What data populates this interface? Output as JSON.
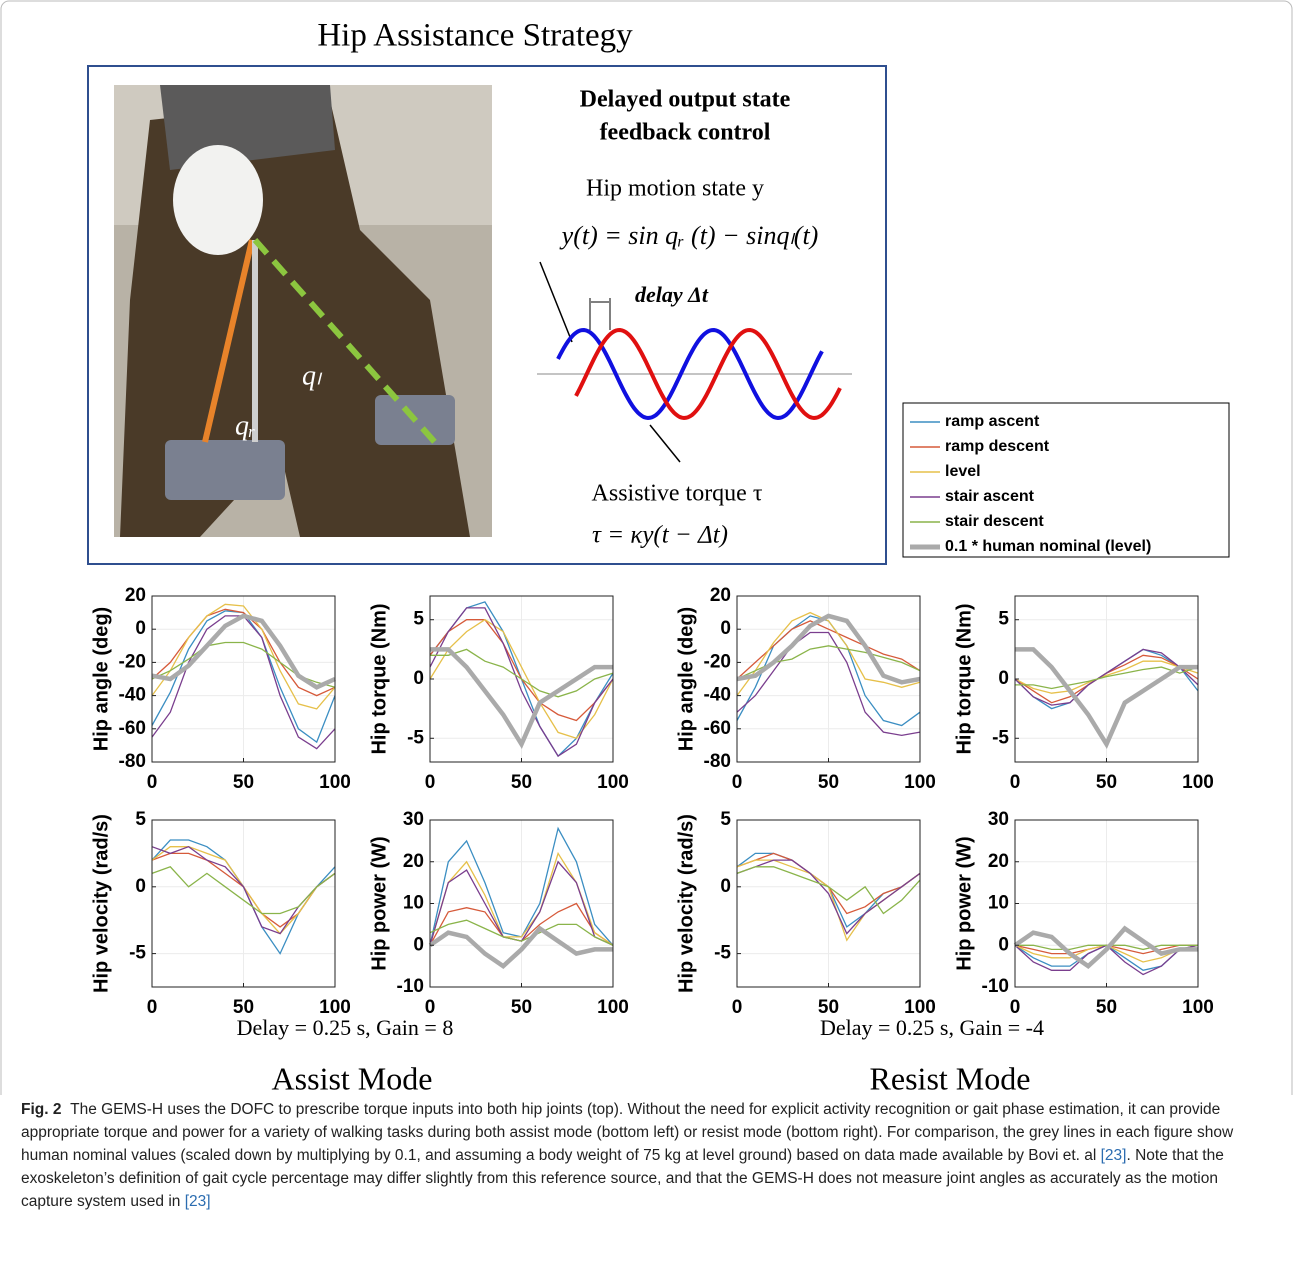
{
  "title": "Hip Assistance Strategy",
  "diagram": {
    "heading": [
      "Delayed output state",
      "feedback control"
    ],
    "state_label": "Hip motion state y",
    "state_eq": "y(t) = sin qᵣ (t) − sinqₗ(t)",
    "delay_label": "delay Δt",
    "torque_label": "Assistive torque τ",
    "torque_eq": "τ = κy(t − Δt)",
    "q_r": "qᵣ",
    "q_l": "qₗ"
  },
  "legend": [
    {
      "name": "ramp ascent",
      "color": "#3b8ec2"
    },
    {
      "name": "ramp descent",
      "color": "#d65a3a"
    },
    {
      "name": "level",
      "color": "#e6c04a"
    },
    {
      "name": "stair ascent",
      "color": "#7a3e8e"
    },
    {
      "name": "stair descent",
      "color": "#8ab44a"
    },
    {
      "name": "0.1 * human nominal (level)",
      "color": "#aaaaaa"
    }
  ],
  "chart_data": [
    {
      "type": "line",
      "y_label": "Hip angle (deg)",
      "x": [
        0,
        10,
        20,
        30,
        40,
        50,
        60,
        70,
        80,
        90,
        100
      ],
      "xlim": [
        0,
        100
      ],
      "xticks": [
        0,
        50,
        100
      ],
      "ylim": [
        -80,
        20
      ],
      "yticks": [
        -80,
        -60,
        -40,
        -20,
        0,
        20
      ],
      "grid": true,
      "series": [
        {
          "color": "#3b8ec2",
          "values": [
            -58,
            -38,
            -12,
            5,
            11,
            10,
            -5,
            -35,
            -60,
            -68,
            -40
          ]
        },
        {
          "color": "#d65a3a",
          "values": [
            -30,
            -20,
            -5,
            8,
            12,
            10,
            0,
            -20,
            -35,
            -40,
            -35
          ]
        },
        {
          "color": "#e6c04a",
          "values": [
            -40,
            -25,
            -5,
            8,
            15,
            14,
            0,
            -25,
            -45,
            -48,
            -35
          ]
        },
        {
          "color": "#7a3e8e",
          "values": [
            -65,
            -50,
            -20,
            0,
            8,
            8,
            -5,
            -40,
            -65,
            -72,
            -60
          ]
        },
        {
          "color": "#8ab44a",
          "values": [
            -30,
            -25,
            -18,
            -10,
            -8,
            -8,
            -12,
            -20,
            -28,
            -32,
            -35
          ]
        },
        {
          "color": "#aaaaaa",
          "values": [
            -28,
            -30,
            -22,
            -10,
            2,
            8,
            5,
            -10,
            -28,
            -35,
            -30
          ]
        }
      ]
    },
    {
      "type": "line",
      "y_label": "Hip torque (Nm)",
      "x": [
        0,
        10,
        20,
        30,
        40,
        50,
        60,
        70,
        80,
        90,
        100
      ],
      "xlim": [
        0,
        100
      ],
      "xticks": [
        0,
        50,
        100
      ],
      "ylim": [
        -7,
        7
      ],
      "yticks": [
        -5,
        0,
        5
      ],
      "grid": true,
      "series": [
        {
          "color": "#3b8ec2",
          "values": [
            2,
            4,
            6,
            6.5,
            4,
            0,
            -4,
            -6.5,
            -5,
            -2,
            0.5
          ]
        },
        {
          "color": "#d65a3a",
          "values": [
            2,
            4,
            5,
            5,
            3,
            0,
            -2,
            -3,
            -3.5,
            -2,
            0
          ]
        },
        {
          "color": "#e6c04a",
          "values": [
            0,
            2.5,
            4,
            5,
            4,
            1,
            -2,
            -4.5,
            -5,
            -3,
            0
          ]
        },
        {
          "color": "#7a3e8e",
          "values": [
            1,
            4,
            6,
            6,
            3,
            -1,
            -4,
            -6.5,
            -5.5,
            -2,
            0
          ]
        },
        {
          "color": "#8ab44a",
          "values": [
            2,
            2,
            2.5,
            1.5,
            1,
            0,
            -1,
            -1.5,
            -1,
            0,
            0.5
          ]
        },
        {
          "color": "#aaaaaa",
          "values": [
            2.5,
            2.5,
            1,
            -1,
            -3,
            -5.5,
            -2,
            -1,
            0,
            1,
            1
          ]
        }
      ]
    },
    {
      "type": "line",
      "y_label": "Hip angle (deg)",
      "x": [
        0,
        10,
        20,
        30,
        40,
        50,
        60,
        70,
        80,
        90,
        100
      ],
      "xlim": [
        0,
        100
      ],
      "xticks": [
        0,
        50,
        100
      ],
      "ylim": [
        -80,
        20
      ],
      "yticks": [
        -80,
        -60,
        -40,
        -20,
        0,
        20
      ],
      "grid": true,
      "series": [
        {
          "color": "#3b8ec2",
          "values": [
            -55,
            -35,
            -10,
            0,
            8,
            5,
            -10,
            -40,
            -55,
            -58,
            -50
          ]
        },
        {
          "color": "#d65a3a",
          "values": [
            -30,
            -20,
            -10,
            0,
            5,
            0,
            -5,
            -10,
            -15,
            -18,
            -25
          ]
        },
        {
          "color": "#e6c04a",
          "values": [
            -40,
            -25,
            -8,
            5,
            10,
            5,
            -10,
            -30,
            -32,
            -35,
            -32
          ]
        },
        {
          "color": "#7a3e8e",
          "values": [
            -50,
            -40,
            -25,
            -10,
            -2,
            -2,
            -20,
            -50,
            -62,
            -64,
            -62
          ]
        },
        {
          "color": "#8ab44a",
          "values": [
            -30,
            -25,
            -20,
            -18,
            -12,
            -10,
            -12,
            -14,
            -17,
            -20,
            -25
          ]
        },
        {
          "color": "#aaaaaa",
          "values": [
            -30,
            -28,
            -20,
            -10,
            2,
            8,
            5,
            -10,
            -28,
            -32,
            -30
          ]
        }
      ]
    },
    {
      "type": "line",
      "y_label": "Hip torque (Nm)",
      "x": [
        0,
        10,
        20,
        30,
        40,
        50,
        60,
        70,
        80,
        90,
        100
      ],
      "xlim": [
        0,
        100
      ],
      "xticks": [
        0,
        50,
        100
      ],
      "ylim": [
        -7,
        7
      ],
      "yticks": [
        -5,
        0,
        5
      ],
      "grid": true,
      "series": [
        {
          "color": "#3b8ec2",
          "values": [
            0,
            -1.5,
            -2.5,
            -2,
            -0.5,
            0.5,
            1.5,
            2.5,
            2,
            1,
            -1
          ]
        },
        {
          "color": "#d65a3a",
          "values": [
            0,
            -1,
            -2,
            -1.5,
            -0.5,
            0.5,
            1.2,
            2,
            1.8,
            1,
            0
          ]
        },
        {
          "color": "#e6c04a",
          "values": [
            0,
            -0.8,
            -1.2,
            -1,
            -0.3,
            0.3,
            0.8,
            1.5,
            1.5,
            1,
            0.5
          ]
        },
        {
          "color": "#7a3e8e",
          "values": [
            0,
            -1.5,
            -2.2,
            -2,
            -0.5,
            0.5,
            1.5,
            2.5,
            2.2,
            1,
            -0.5
          ]
        },
        {
          "color": "#8ab44a",
          "values": [
            -0.5,
            -0.5,
            -0.8,
            -0.5,
            -0.2,
            0.2,
            0.5,
            0.8,
            1,
            0.5,
            1
          ]
        },
        {
          "color": "#aaaaaa",
          "values": [
            2.5,
            2.5,
            1,
            -1,
            -3,
            -5.5,
            -2,
            -1,
            0,
            1,
            1
          ]
        }
      ]
    },
    {
      "type": "line",
      "y_label": "Hip velocity (rad/s)",
      "x": [
        0,
        10,
        20,
        30,
        40,
        50,
        60,
        70,
        80,
        90,
        100
      ],
      "xlim": [
        0,
        100
      ],
      "xticks": [
        0,
        50,
        100
      ],
      "ylim": [
        -7.5,
        5
      ],
      "yticks": [
        -5,
        0,
        5
      ],
      "grid": true,
      "series": [
        {
          "color": "#3b8ec2",
          "values": [
            2,
            3.5,
            3.5,
            3,
            2,
            0,
            -3,
            -5,
            -2,
            0,
            1.5
          ]
        },
        {
          "color": "#d65a3a",
          "values": [
            2,
            2.5,
            2.5,
            2,
            1,
            0,
            -2,
            -3,
            -2,
            0,
            1
          ]
        },
        {
          "color": "#e6c04a",
          "values": [
            2,
            3,
            3,
            2.5,
            2,
            0,
            -2,
            -3.5,
            -2,
            0,
            1
          ]
        },
        {
          "color": "#7a3e8e",
          "values": [
            3,
            2.5,
            3,
            2,
            1.5,
            0,
            -3,
            -3.5,
            -1.5,
            0,
            1
          ]
        },
        {
          "color": "#8ab44a",
          "values": [
            1,
            1.5,
            0,
            1,
            0,
            -1,
            -2,
            -2,
            -1.5,
            0,
            1
          ]
        }
      ]
    },
    {
      "type": "line",
      "y_label": "Hip power (W)",
      "x": [
        0,
        10,
        20,
        30,
        40,
        50,
        60,
        70,
        80,
        90,
        100
      ],
      "xlim": [
        0,
        100
      ],
      "xticks": [
        0,
        50,
        100
      ],
      "ylim": [
        -10,
        30
      ],
      "yticks": [
        -10,
        0,
        10,
        20,
        30
      ],
      "grid": true,
      "series": [
        {
          "color": "#3b8ec2",
          "values": [
            0,
            20,
            25,
            15,
            3,
            2,
            10,
            28,
            20,
            5,
            0
          ]
        },
        {
          "color": "#d65a3a",
          "values": [
            0,
            8,
            9,
            8,
            2,
            1,
            5,
            8,
            10,
            3,
            0
          ]
        },
        {
          "color": "#e6c04a",
          "values": [
            0,
            15,
            20,
            12,
            2,
            2,
            8,
            22,
            15,
            3,
            0
          ]
        },
        {
          "color": "#7a3e8e",
          "values": [
            0,
            15,
            18,
            10,
            2,
            1,
            8,
            20,
            15,
            2,
            0
          ]
        },
        {
          "color": "#8ab44a",
          "values": [
            3,
            5,
            6,
            4,
            2,
            1,
            3,
            5,
            5,
            2,
            0
          ]
        },
        {
          "color": "#aaaaaa",
          "values": [
            0,
            3,
            2,
            -2,
            -5,
            -1,
            4,
            1,
            -2,
            -1,
            -1
          ]
        }
      ]
    },
    {
      "type": "line",
      "y_label": "Hip velocity (rad/s)",
      "x": [
        0,
        10,
        20,
        30,
        40,
        50,
        60,
        70,
        80,
        90,
        100
      ],
      "xlim": [
        0,
        100
      ],
      "xticks": [
        0,
        50,
        100
      ],
      "ylim": [
        -7.5,
        5
      ],
      "yticks": [
        -5,
        0,
        5
      ],
      "grid": true,
      "series": [
        {
          "color": "#3b8ec2",
          "values": [
            1.5,
            2.5,
            2.5,
            2,
            1,
            0,
            -3,
            -2,
            -0.5,
            0,
            1
          ]
        },
        {
          "color": "#d65a3a",
          "values": [
            1.5,
            2,
            2.5,
            2,
            1,
            0,
            -2,
            -1.5,
            -0.5,
            0,
            1
          ]
        },
        {
          "color": "#e6c04a",
          "values": [
            1.5,
            2,
            2,
            1.5,
            1,
            0,
            -4,
            -2,
            -1,
            0,
            1
          ]
        },
        {
          "color": "#7a3e8e",
          "values": [
            1,
            1.5,
            2,
            2,
            1,
            -0.5,
            -3.5,
            -2,
            -1,
            0,
            1
          ]
        },
        {
          "color": "#8ab44a",
          "values": [
            1,
            1.5,
            1.5,
            1,
            0.5,
            0,
            -1,
            0,
            -2,
            -1,
            0.5
          ]
        }
      ]
    },
    {
      "type": "line",
      "y_label": "Hip power (W)",
      "x": [
        0,
        10,
        20,
        30,
        40,
        50,
        60,
        70,
        80,
        90,
        100
      ],
      "xlim": [
        0,
        100
      ],
      "xticks": [
        0,
        50,
        100
      ],
      "ylim": [
        -10,
        30
      ],
      "yticks": [
        -10,
        0,
        10,
        20,
        30
      ],
      "grid": true,
      "series": [
        {
          "color": "#3b8ec2",
          "values": [
            0,
            -3,
            -5,
            -5,
            -2,
            0,
            -3,
            -6,
            -5,
            -1,
            0
          ]
        },
        {
          "color": "#d65a3a",
          "values": [
            0,
            -1,
            -2,
            -2,
            -1,
            0,
            -1,
            -2,
            -1,
            0,
            0
          ]
        },
        {
          "color": "#e6c04a",
          "values": [
            0,
            -2,
            -3,
            -3,
            -1,
            0,
            -2,
            -4,
            -3,
            -1,
            0
          ]
        },
        {
          "color": "#7a3e8e",
          "values": [
            0,
            -4,
            -6,
            -6,
            -2,
            0,
            -4,
            -7,
            -5,
            -1,
            0
          ]
        },
        {
          "color": "#8ab44a",
          "values": [
            0,
            0,
            -1,
            -1,
            0,
            0,
            0,
            -1,
            0,
            0,
            0
          ]
        },
        {
          "color": "#aaaaaa",
          "values": [
            0,
            3,
            2,
            -2,
            -5,
            -1,
            4,
            1,
            -2,
            -1,
            -1
          ]
        }
      ]
    }
  ],
  "panel_captions": [
    "Delay = 0.25 s, Gain = 8",
    "Delay = 0.25 s, Gain = -4"
  ],
  "mode_labels": [
    "Assist Mode",
    "Resist Mode"
  ],
  "caption": {
    "label": "Fig. 2",
    "parts": [
      "The GEMS-H uses the DOFC to prescribe torque inputs into both hip joints (top). Without the need for explicit activity recognition or gait phase estimation, it can provide appropriate torque and power for a variety of walking tasks during both assist mode (bottom left) or resist mode (bottom right). For comparison, the grey lines in each figure show human nominal values (scaled down by multiplying by 0.1, and assuming a body weight of 75 kg at level ground) based on data made available by Bovi et. al ",
      "[23]",
      ". Note that the exoskeleton’s definition of gait cycle percentage may differ slightly from this reference source, and that the GEMS-H does not measure joint angles as accurately as the motion capture system used in ",
      "[23]"
    ]
  }
}
